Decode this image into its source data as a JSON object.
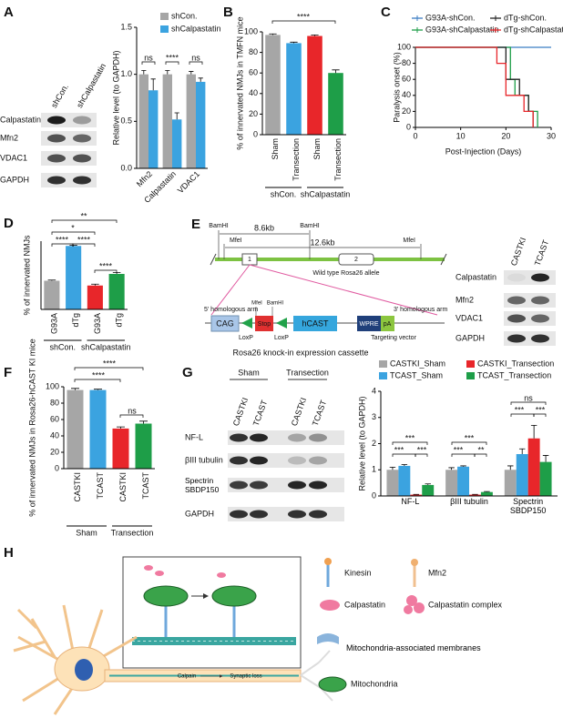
{
  "chart_data": [
    {
      "type": "bar",
      "panel": "A",
      "ylabel": "Relative level (to GAPDH)",
      "categories": [
        "Mfn2",
        "Calpastatin",
        "VDAC1"
      ],
      "series": [
        {
          "name": "shCon.",
          "color": "#a6a6a6",
          "values": [
            1.0,
            1.0,
            1.0
          ],
          "errors": [
            0.04,
            0.04,
            0.03
          ]
        },
        {
          "name": "shCalpastatin",
          "color": "#3ba3e0",
          "values": [
            0.83,
            0.52,
            0.92
          ],
          "errors": [
            0.12,
            0.07,
            0.04
          ]
        }
      ],
      "ylim": [
        0,
        1.5
      ],
      "yticks": [
        {
          "value": 0,
          "label": "0.0"
        },
        {
          "value": 0.5,
          "label": "0.5"
        },
        {
          "value": 1,
          "label": "1.0"
        },
        {
          "value": 1.5,
          "label": "1.5"
        }
      ],
      "annotations": [
        "ns",
        "****",
        "ns"
      ]
    },
    {
      "type": "bar",
      "panel": "B",
      "ylabel": "% of innervated NMJs in TMFN mice",
      "categories": [
        "Sham",
        "Transection",
        "Sham",
        "Transection"
      ],
      "values": [
        97,
        89,
        96,
        60
      ],
      "errors": [
        1,
        1,
        1,
        3
      ],
      "colors": [
        "#a6a6a6",
        "#3ba3e0",
        "#e8262a",
        "#1e9e48"
      ],
      "groups": [
        "shCon.",
        "shCalpastatin"
      ],
      "ylim": [
        0,
        100
      ],
      "yticks": [
        0,
        20,
        40,
        60,
        80,
        100
      ],
      "annotations": [
        "****"
      ]
    },
    {
      "type": "line",
      "panel": "C",
      "xlabel": "Post-Injection (Days)",
      "ylabel": "Paralysis onset (%)",
      "xlim": [
        0,
        30
      ],
      "ylim": [
        0,
        100
      ],
      "xticks": [
        0,
        10,
        20,
        30
      ],
      "yticks": [
        0,
        20,
        40,
        60,
        80,
        100
      ],
      "series": [
        {
          "name": "G93A-shCon.",
          "color": "#3b7dc4",
          "x": [
            0,
            30
          ],
          "values": [
            100,
            100
          ]
        },
        {
          "name": "G93A-shCalpastatin",
          "color": "#1e9e48",
          "x": [
            0,
            21,
            21,
            22,
            22,
            25,
            25,
            27,
            27
          ],
          "values": [
            100,
            100,
            60,
            60,
            40,
            40,
            20,
            20,
            0
          ]
        },
        {
          "name": "dTg-shCon.",
          "color": "#222222",
          "x": [
            0,
            20,
            20,
            23,
            23,
            25,
            25,
            26,
            26
          ],
          "values": [
            100,
            100,
            60,
            60,
            40,
            40,
            20,
            20,
            0
          ]
        },
        {
          "name": "dTg-shCalpastatin",
          "color": "#e8262a",
          "x": [
            0,
            18,
            18,
            20,
            20,
            24,
            24,
            26,
            26
          ],
          "values": [
            100,
            100,
            80,
            80,
            40,
            40,
            20,
            20,
            0
          ]
        }
      ]
    },
    {
      "type": "bar",
      "panel": "D",
      "ylabel": "% of innervated NMJs",
      "categories": [
        "G93A",
        "dTg",
        "G93A",
        "dTg"
      ],
      "values": [
        42,
        93,
        35,
        52
      ],
      "errors": [
        1,
        1,
        2,
        2
      ],
      "colors": [
        "#a6a6a6",
        "#3ba3e0",
        "#e8262a",
        "#1e9e48"
      ],
      "groups": [
        "shCon.",
        "shCalpastatin"
      ],
      "ylim": [
        0,
        100
      ],
      "annotations": [
        "**",
        "*",
        "****",
        "****",
        "****"
      ]
    },
    {
      "type": "bar",
      "panel": "F",
      "ylabel": "% of innervated NMJs in Rosa26-hCAST KI  mice",
      "categories": [
        "CASTKI",
        "TCAST",
        "CASTKI",
        "TCAST"
      ],
      "values": [
        96,
        96,
        49,
        55
      ],
      "errors": [
        2,
        1,
        2,
        3
      ],
      "colors": [
        "#a6a6a6",
        "#3ba3e0",
        "#e8262a",
        "#1e9e48"
      ],
      "groups": [
        "Sham",
        "Transection"
      ],
      "ylim": [
        0,
        100
      ],
      "yticks": [
        0,
        20,
        40,
        60,
        80,
        100
      ],
      "annotations": [
        "****",
        "****",
        "ns"
      ]
    },
    {
      "type": "bar",
      "panel": "G",
      "ylabel": "Relative level (to GAPDH)",
      "categories": [
        "NF-L",
        "βIII tubulin",
        "Spectrin SBDP150"
      ],
      "series": [
        {
          "name": "CASTKI_Sham",
          "color": "#a6a6a6",
          "values": [
            1.0,
            1.0,
            1.0
          ],
          "errors": [
            0.1,
            0.08,
            0.15
          ]
        },
        {
          "name": "TCAST_Sham",
          "color": "#3ba3e0",
          "values": [
            1.15,
            1.12,
            1.6
          ],
          "errors": [
            0.05,
            0.03,
            0.2
          ]
        },
        {
          "name": "CASTKI_Transection",
          "color": "#e8262a",
          "values": [
            0.05,
            0.05,
            2.2
          ],
          "errors": [
            0.01,
            0.01,
            0.5
          ]
        },
        {
          "name": "TCAST_Transection",
          "color": "#1e9e48",
          "values": [
            0.42,
            0.15,
            1.3
          ],
          "errors": [
            0.04,
            0.02,
            0.25
          ]
        }
      ],
      "ylim": [
        0,
        4
      ],
      "yticks": [
        0,
        1,
        2,
        3,
        4
      ],
      "annotations": [
        "***",
        "***",
        "***",
        "***",
        "***",
        "**",
        "ns",
        "***",
        "***"
      ]
    }
  ],
  "blot_A": {
    "lanes": [
      "shCon.",
      "shCalpastatin"
    ],
    "rows": [
      "Calpastatin",
      "Mfn2",
      "VDAC1",
      "GAPDH"
    ]
  },
  "construct": {
    "panel": "E",
    "sites_top": [
      "BamHI",
      "BamHI",
      "MfeI",
      "MfeI"
    ],
    "sizes": [
      "8.6kb",
      "12.6kb"
    ],
    "exons": [
      "1",
      "2"
    ],
    "allele": "Wild type Rosa26 allele",
    "left_arm": "5' homologous arm",
    "right_arm": "3' homologous arm",
    "cassette_sites": [
      "MfeI",
      "BamHI"
    ],
    "elements": [
      "CAG",
      "Stop",
      "hCAST",
      "WPRE",
      "pA"
    ],
    "loxp": [
      "LoxP",
      "LoxP"
    ],
    "vector": "Targeting vector",
    "caption": "Rosa26 knock-in expression cassette"
  },
  "blot_E": {
    "lanes": [
      "CASTKI",
      "TCAST"
    ],
    "rows": [
      "Calpastatin",
      "Mfn2",
      "VDAC1",
      "GAPDH"
    ]
  },
  "blot_G": {
    "conditions": [
      "Sham",
      "Transection"
    ],
    "lanes": [
      "CASTKI",
      "TCAST",
      "CASTKI",
      "TCAST"
    ],
    "rows": [
      "NF-L",
      "βIII tubulin",
      "Spectrin SBDP150",
      "GAPDH"
    ]
  },
  "model": {
    "panel": "H",
    "legend": [
      "Kinesin",
      "Mfn2",
      "Calpastatin",
      "Calpastatin complex",
      "Mitochondria-associated membranes",
      "Mitochondria"
    ],
    "labels": [
      "Calpain",
      "Synaptic loss"
    ]
  }
}
